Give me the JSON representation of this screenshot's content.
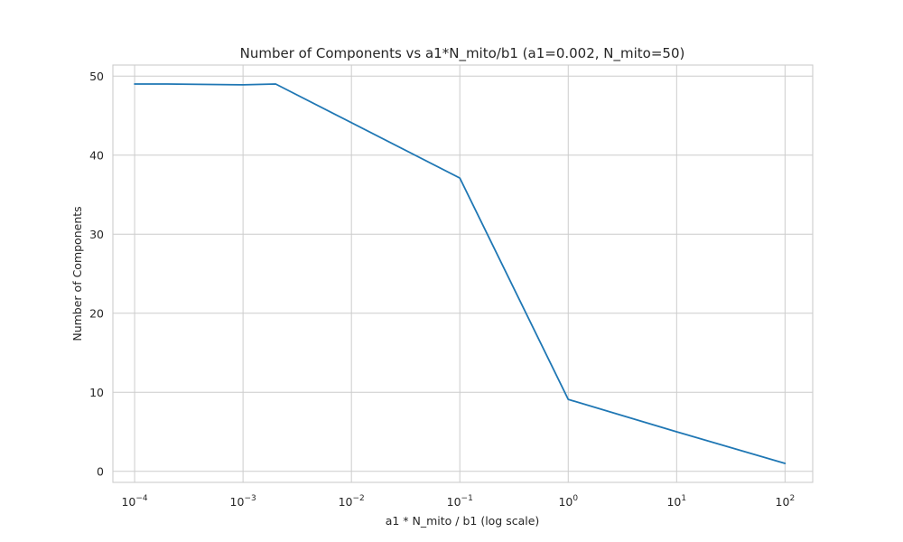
{
  "chart_data": {
    "type": "line",
    "title": "Number of Components vs a1*N_mito/b1 (a1=0.002, N_mito=50)",
    "xlabel": "a1 * N_mito / b1 (log scale)",
    "ylabel": "Number of Components",
    "x_scale": "log",
    "xlim": [
      6.3e-05,
      180
    ],
    "ylim": [
      -1.4,
      51.4
    ],
    "x_ticks": [
      {
        "value": 0.0001,
        "base": "10",
        "exp": "−4"
      },
      {
        "value": 0.001,
        "base": "10",
        "exp": "−3"
      },
      {
        "value": 0.01,
        "base": "10",
        "exp": "−2"
      },
      {
        "value": 0.1,
        "base": "10",
        "exp": "−1"
      },
      {
        "value": 1,
        "base": "10",
        "exp": "0"
      },
      {
        "value": 10,
        "base": "10",
        "exp": "1"
      },
      {
        "value": 100,
        "base": "10",
        "exp": "2"
      }
    ],
    "y_ticks": [
      0,
      10,
      20,
      30,
      40,
      50
    ],
    "grid": true,
    "series": [
      {
        "color": "#1f77b4",
        "x": [
          0.0001,
          0.0002,
          0.001,
          0.002,
          0.1,
          1,
          10,
          100
        ],
        "y": [
          49,
          49,
          48.9,
          49,
          37.1,
          9.1,
          5,
          1
        ]
      }
    ]
  }
}
